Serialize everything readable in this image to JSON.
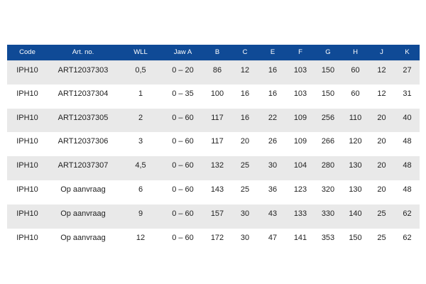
{
  "table": {
    "headers": [
      "Code",
      "Art. no.",
      "WLL",
      "Jaw A",
      "B",
      "C",
      "E",
      "F",
      "G",
      "H",
      "J",
      "K"
    ],
    "rows": [
      [
        "IPH10",
        "ART12037303",
        "0,5",
        "0 – 20",
        "86",
        "12",
        "16",
        "103",
        "150",
        "60",
        "12",
        "27"
      ],
      [
        "IPH10",
        "ART12037304",
        "1",
        "0 – 35",
        "100",
        "16",
        "16",
        "103",
        "150",
        "60",
        "12",
        "31"
      ],
      [
        "IPH10",
        "ART12037305",
        "2",
        "0 – 60",
        "117",
        "16",
        "22",
        "109",
        "256",
        "110",
        "20",
        "40"
      ],
      [
        "IPH10",
        "ART12037306",
        "3",
        "0 – 60",
        "117",
        "20",
        "26",
        "109",
        "266",
        "120",
        "20",
        "48"
      ],
      [
        "IPH10",
        "ART12037307",
        "4,5",
        "0 – 60",
        "132",
        "25",
        "30",
        "104",
        "280",
        "130",
        "20",
        "48"
      ],
      [
        "IPH10",
        "Op aanvraag",
        "6",
        "0 – 60",
        "143",
        "25",
        "36",
        "123",
        "320",
        "130",
        "20",
        "48"
      ],
      [
        "IPH10",
        "Op aanvraag",
        "9",
        "0 – 60",
        "157",
        "30",
        "43",
        "133",
        "330",
        "140",
        "25",
        "62"
      ],
      [
        "IPH10",
        "Op aanvraag",
        "12",
        "0 – 60",
        "172",
        "30",
        "47",
        "141",
        "353",
        "150",
        "25",
        "62"
      ]
    ]
  },
  "colors": {
    "header_bg": "#0f4a96",
    "header_text": "#ffffff",
    "row_stripe": "#e9e9e9"
  }
}
